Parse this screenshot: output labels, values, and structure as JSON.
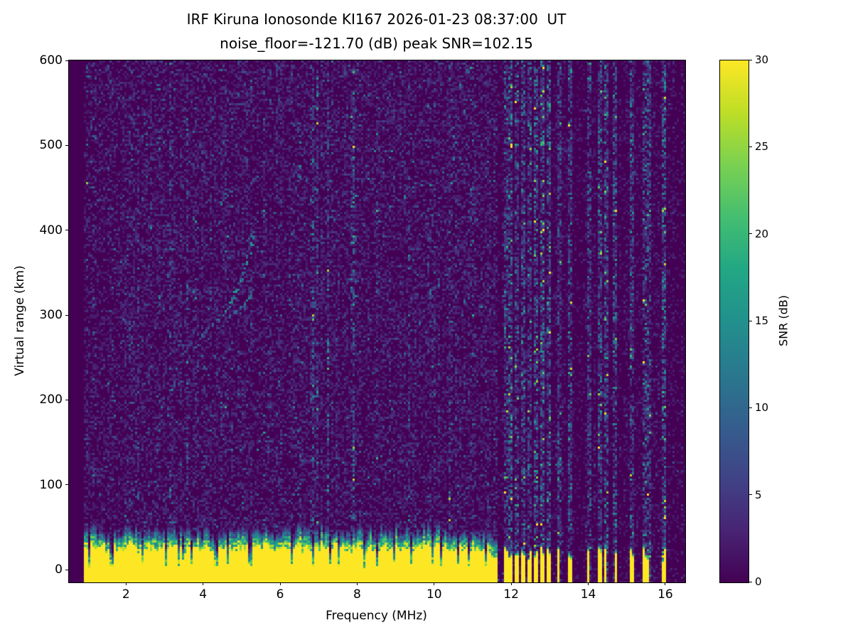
{
  "figure": {
    "background": "#ffffff",
    "plot_background": "#440154"
  },
  "chart_data": {
    "type": "heatmap",
    "title": "IRF Kiruna Ionosonde KI167 2026-01-23 08:37:00  UT",
    "subtitle": "noise_floor=-121.70 (dB) peak SNR=102.15",
    "xlabel": "Frequency (MHz)",
    "ylabel": "Virtual range (km)",
    "xlim": [
      0.5,
      16.5
    ],
    "ylim": [
      -15,
      600
    ],
    "xticks": [
      2,
      4,
      6,
      8,
      10,
      12,
      14,
      16
    ],
    "yticks": [
      0,
      100,
      200,
      300,
      400,
      500,
      600
    ],
    "grid": false,
    "legend": "none",
    "colorbar": {
      "label": "SNR (dB)",
      "min": 0,
      "max": 30,
      "ticks": [
        0,
        5,
        10,
        15,
        20,
        25,
        30
      ],
      "position": "right",
      "colormap": "viridis"
    },
    "colormap_stops": [
      {
        "pos": 0.0,
        "color": "#440154"
      },
      {
        "pos": 0.1,
        "color": "#482475"
      },
      {
        "pos": 0.2,
        "color": "#404387"
      },
      {
        "pos": 0.3,
        "color": "#345e8d"
      },
      {
        "pos": 0.4,
        "color": "#29788e"
      },
      {
        "pos": 0.5,
        "color": "#22908d"
      },
      {
        "pos": 0.6,
        "color": "#22a784"
      },
      {
        "pos": 0.7,
        "color": "#44be70"
      },
      {
        "pos": 0.8,
        "color": "#7ad151"
      },
      {
        "pos": 0.9,
        "color": "#bdde26"
      },
      {
        "pos": 1.0,
        "color": "#fde725"
      }
    ],
    "features": {
      "noise_floor_db": -121.7,
      "peak_snr_db": 102.15,
      "data_freq_min_mhz": 0.9,
      "ground_clutter": {
        "freq_min_mhz": 0.9,
        "freq_max_mhz": 11.65,
        "snr_db": 30,
        "top_km_mean": 25,
        "transition_top_km": 55
      },
      "clutter_notch_freqs_mhz": [
        1.6,
        2.4,
        3.0,
        3.35,
        3.7,
        4.35,
        5.2,
        6.3,
        6.85,
        7.3,
        8.15,
        8.5,
        9.4,
        10.15,
        10.9
      ],
      "rfi_stripe_freqs_mhz": [
        11.83,
        11.98,
        12.14,
        12.31,
        12.48,
        12.62,
        12.79,
        12.96,
        13.23,
        13.49,
        14.01,
        14.28,
        14.45,
        14.67,
        15.11,
        15.43,
        15.56,
        15.93
      ],
      "echo_trace": {
        "description": "ionospheric echo trace",
        "lower_branch_mhz_km": [
          [
            3.45,
            255
          ],
          [
            3.75,
            266
          ],
          [
            4.0,
            277
          ],
          [
            4.25,
            289
          ],
          [
            4.5,
            301
          ]
        ],
        "main_branch_mhz_km": [
          [
            4.5,
            301
          ],
          [
            4.68,
            313
          ],
          [
            4.82,
            324
          ],
          [
            4.94,
            337
          ],
          [
            5.04,
            350
          ],
          [
            5.12,
            363
          ],
          [
            5.2,
            377
          ],
          [
            5.27,
            391
          ],
          [
            5.32,
            401
          ]
        ],
        "cusp_branch_mhz_km": [
          [
            4.7,
            299
          ],
          [
            4.85,
            303
          ],
          [
            5.0,
            308
          ],
          [
            5.12,
            314
          ],
          [
            5.22,
            322
          ],
          [
            5.3,
            331
          ]
        ]
      }
    }
  }
}
